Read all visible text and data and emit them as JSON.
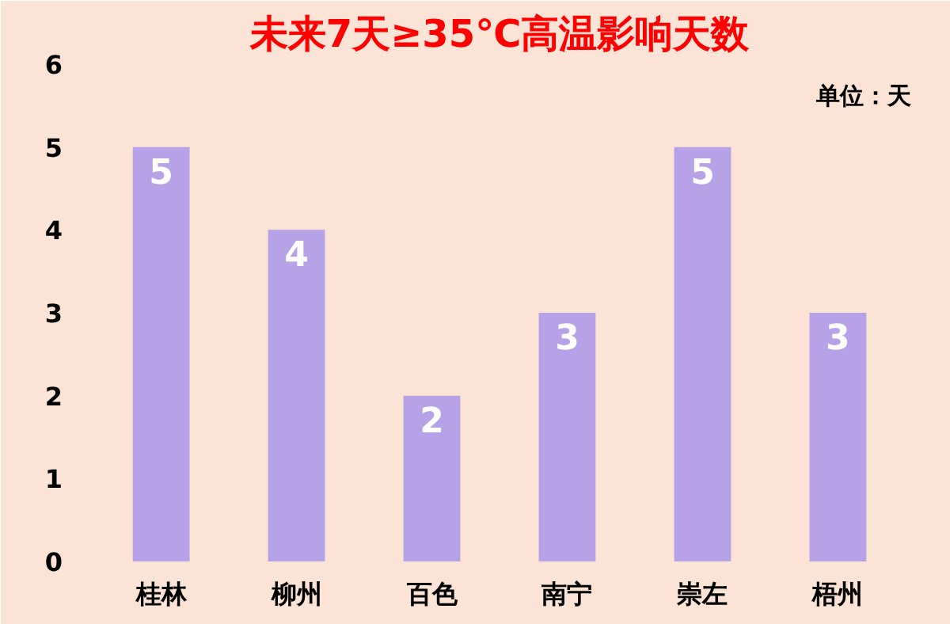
{
  "chart_data": {
    "type": "bar",
    "title": "未来7天≥35℃高温影响天数",
    "categories": [
      "桂林",
      "柳州",
      "百色",
      "南宁",
      "崇左",
      "梧州"
    ],
    "values": [
      5,
      4,
      2,
      3,
      5,
      3
    ],
    "color": "#b7a2e8",
    "ylim": [
      0,
      6
    ],
    "yticks": [
      0,
      1,
      2,
      3,
      4,
      5,
      6
    ],
    "grid": false,
    "data_labels": true,
    "annotations": [
      "单位：天"
    ]
  }
}
